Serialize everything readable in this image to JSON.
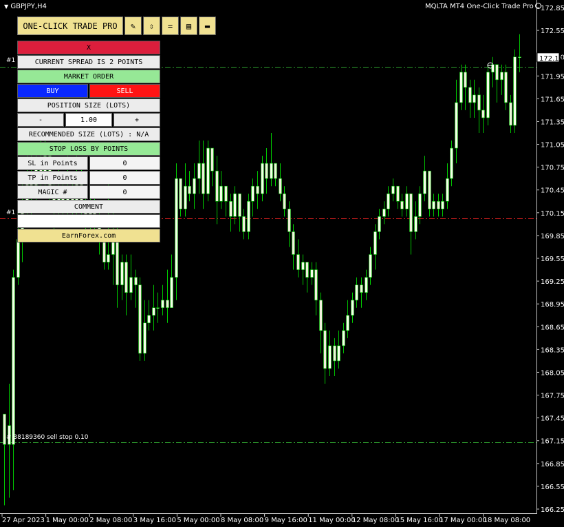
{
  "window": {
    "symbol_title": "GBPJPY,H4",
    "ea_title": "MQLTA MT4 One-Click Trade Pro"
  },
  "panel": {
    "title": "ONE-CLICK TRADE PRO",
    "tools": [
      {
        "name": "pencil-icon",
        "glyph": "✎"
      },
      {
        "name": "arrows-icon",
        "glyph": "⇳"
      },
      {
        "name": "equals-icon",
        "glyph": "="
      },
      {
        "name": "clipboard-icon",
        "glyph": "▤"
      },
      {
        "name": "save-icon",
        "glyph": "▬"
      }
    ],
    "close_label": "X",
    "spread_text": "CURRENT SPREAD IS 2 POINTS",
    "order_type": "MARKET ORDER",
    "buy_label": "BUY",
    "sell_label": "SELL",
    "position_size_label": "POSITION SIZE (LOTS)",
    "minus_label": "-",
    "lots_value": "1.00",
    "plus_label": "+",
    "recommended_text": "RECOMMENDED SIZE (LOTS) : N/A",
    "stop_loss_mode": "STOP LOSS BY POINTS",
    "sl_label": "SL in Points",
    "sl_value": "0",
    "tp_label": "TP in Points",
    "tp_value": "0",
    "magic_label": "MAGIC #",
    "magic_value": "0",
    "comment_label": "COMMENT",
    "comment_value": "",
    "footer_link": "EarnForex.com"
  },
  "chart_data": {
    "type": "candlestick",
    "symbol": "GBPJPY",
    "timeframe": "H4",
    "price_range": [
      166.15,
      172.9
    ],
    "price_ticks": [
      "172.85",
      "172.55",
      "172.20",
      "171.95",
      "171.65",
      "171.35",
      "171.05",
      "170.75",
      "170.45",
      "170.15",
      "169.85",
      "169.55",
      "169.25",
      "168.95",
      "168.65",
      "168.35",
      "168.05",
      "167.75",
      "167.45",
      "167.15",
      "166.85",
      "166.55",
      "166.25"
    ],
    "current_price_label": "172.19",
    "time_ticks": [
      "27 Apr 2023",
      "1 May 00:00",
      "2 May 08:00",
      "3 May 16:00",
      "5 May 00:00",
      "8 May 08:00",
      "9 May 16:00",
      "11 May 00:00",
      "12 May 08:00",
      "15 May 16:00",
      "17 May 00:00",
      "18 May 08:00"
    ],
    "level_lines": [
      {
        "price": 172.07,
        "color": "#2ea02e",
        "label": "#1"
      },
      {
        "price": 170.08,
        "color": "#e02020",
        "label": "#1"
      },
      {
        "price": 167.13,
        "color": "#2ea02e",
        "label": "# 38189360 sell stop 0.10"
      }
    ],
    "candles": [
      [
        167.5,
        167.1,
        167.5,
        166.3
      ],
      [
        167.1,
        167.35,
        167.9,
        166.4
      ],
      [
        167.1,
        169.3,
        169.4,
        166.5
      ],
      [
        169.3,
        169.8,
        170.2,
        169.2
      ],
      [
        169.8,
        170.3,
        170.6,
        169.5
      ],
      [
        170.3,
        170.6,
        170.9,
        170.0
      ],
      [
        170.6,
        170.4,
        170.9,
        170.1
      ],
      [
        170.4,
        170.8,
        171.0,
        170.2
      ],
      [
        170.8,
        170.6,
        171.1,
        170.4
      ],
      [
        170.6,
        170.9,
        171.2,
        170.4
      ],
      [
        170.9,
        170.5,
        171.0,
        170.2
      ],
      [
        170.5,
        170.2,
        170.7,
        169.9
      ],
      [
        170.2,
        170.5,
        170.8,
        170.0
      ],
      [
        170.5,
        170.2,
        170.7,
        170.0
      ],
      [
        170.2,
        170.5,
        170.9,
        170.0
      ],
      [
        170.5,
        170.3,
        170.7,
        170.1
      ],
      [
        170.3,
        170.6,
        170.9,
        170.1
      ],
      [
        170.6,
        170.3,
        170.8,
        170.0
      ],
      [
        170.3,
        170.0,
        170.5,
        169.8
      ],
      [
        170.0,
        170.3,
        170.5,
        169.8
      ],
      [
        170.3,
        170.1,
        170.4,
        169.9
      ],
      [
        170.1,
        169.8,
        170.2,
        169.6
      ],
      [
        169.8,
        169.5,
        169.9,
        169.4
      ],
      [
        169.5,
        169.6,
        170.6,
        169.4
      ],
      [
        169.6,
        169.9,
        170.2,
        169.2
      ],
      [
        169.9,
        169.2,
        170.0,
        168.9
      ],
      [
        169.2,
        169.5,
        169.6,
        169.0
      ],
      [
        169.5,
        169.1,
        169.6,
        168.8
      ],
      [
        169.1,
        169.3,
        169.6,
        169.0
      ],
      [
        169.3,
        169.2,
        169.4,
        168.9
      ],
      [
        169.2,
        168.3,
        169.3,
        168.2
      ],
      [
        168.3,
        168.7,
        169.0,
        168.2
      ],
      [
        168.7,
        168.8,
        169.0,
        168.6
      ],
      [
        168.8,
        168.9,
        169.2,
        168.6
      ],
      [
        168.9,
        168.9,
        169.1,
        168.7
      ],
      [
        168.9,
        169.0,
        169.2,
        168.8
      ],
      [
        169.0,
        168.9,
        169.4,
        168.7
      ],
      [
        168.9,
        169.3,
        169.6,
        169.0
      ],
      [
        169.3,
        170.6,
        170.8,
        169.0
      ],
      [
        170.6,
        170.2,
        170.6,
        170.1
      ],
      [
        170.2,
        170.5,
        170.8,
        170.1
      ],
      [
        170.5,
        170.4,
        170.7,
        170.3
      ],
      [
        170.4,
        170.6,
        170.8,
        170.2
      ],
      [
        170.6,
        170.8,
        171.1,
        170.4
      ],
      [
        170.8,
        170.4,
        171.1,
        170.2
      ],
      [
        170.4,
        171.0,
        171.1,
        170.3
      ],
      [
        171.0,
        170.7,
        171.0,
        170.5
      ],
      [
        170.7,
        170.3,
        170.9,
        170.0
      ],
      [
        170.3,
        170.5,
        170.7,
        170.2
      ],
      [
        170.5,
        170.3,
        170.5,
        170.1
      ],
      [
        170.3,
        170.1,
        170.4,
        169.9
      ],
      [
        170.1,
        170.4,
        170.5,
        170.0
      ],
      [
        170.4,
        170.1,
        170.4,
        169.9
      ],
      [
        170.1,
        169.9,
        170.2,
        169.8
      ],
      [
        169.9,
        170.3,
        170.4,
        169.8
      ],
      [
        170.3,
        170.5,
        170.6,
        170.1
      ],
      [
        170.5,
        170.4,
        170.7,
        170.2
      ],
      [
        170.4,
        170.8,
        170.9,
        170.3
      ],
      [
        170.8,
        170.6,
        171.0,
        170.4
      ],
      [
        170.6,
        170.8,
        171.2,
        170.5
      ],
      [
        170.8,
        170.6,
        170.8,
        170.5
      ],
      [
        170.6,
        170.4,
        170.8,
        170.3
      ],
      [
        170.4,
        170.2,
        170.5,
        170.1
      ],
      [
        170.2,
        169.9,
        170.3,
        169.7
      ],
      [
        169.9,
        169.6,
        170.0,
        169.4
      ],
      [
        169.6,
        169.4,
        169.8,
        169.3
      ],
      [
        169.4,
        169.5,
        169.6,
        169.2
      ],
      [
        169.5,
        169.3,
        169.5,
        169.1
      ],
      [
        169.3,
        169.4,
        169.5,
        169.2
      ],
      [
        169.4,
        169.0,
        169.5,
        168.8
      ],
      [
        169.0,
        168.6,
        169.1,
        168.3
      ],
      [
        168.6,
        168.1,
        168.7,
        167.9
      ],
      [
        168.1,
        168.4,
        168.6,
        168.0
      ],
      [
        168.4,
        168.2,
        168.5,
        168.0
      ],
      [
        168.2,
        168.4,
        168.6,
        168.1
      ],
      [
        168.4,
        168.6,
        168.7,
        168.3
      ],
      [
        168.6,
        168.8,
        169.0,
        168.5
      ],
      [
        168.8,
        169.0,
        169.1,
        168.7
      ],
      [
        169.0,
        169.2,
        169.3,
        168.9
      ],
      [
        169.2,
        169.1,
        169.3,
        168.9
      ],
      [
        169.1,
        169.3,
        169.4,
        169.0
      ],
      [
        169.3,
        169.6,
        169.7,
        169.2
      ],
      [
        169.6,
        169.9,
        170.0,
        169.4
      ],
      [
        169.9,
        170.1,
        170.2,
        169.8
      ],
      [
        170.1,
        170.2,
        170.3,
        170.0
      ],
      [
        170.2,
        170.4,
        170.5,
        170.1
      ],
      [
        170.4,
        170.5,
        170.6,
        170.3
      ],
      [
        170.5,
        170.3,
        170.5,
        170.2
      ],
      [
        170.3,
        170.2,
        170.4,
        170.1
      ],
      [
        170.2,
        170.4,
        170.5,
        170.1
      ],
      [
        170.4,
        169.9,
        170.4,
        169.6
      ],
      [
        169.9,
        170.1,
        170.3,
        169.8
      ],
      [
        170.1,
        170.4,
        170.5,
        170.0
      ],
      [
        170.4,
        170.7,
        170.9,
        170.3
      ],
      [
        170.7,
        170.2,
        170.7,
        170.1
      ],
      [
        170.2,
        170.3,
        170.4,
        170.1
      ],
      [
        170.3,
        170.2,
        170.4,
        170.1
      ],
      [
        170.2,
        170.3,
        170.4,
        170.1
      ],
      [
        170.3,
        170.6,
        170.8,
        170.2
      ],
      [
        170.6,
        171.0,
        171.1,
        170.5
      ],
      [
        171.0,
        171.6,
        171.9,
        170.8
      ],
      [
        171.6,
        172.0,
        172.1,
        171.5
      ],
      [
        172.0,
        171.8,
        172.1,
        171.5
      ],
      [
        171.8,
        171.6,
        171.9,
        171.4
      ],
      [
        171.6,
        171.7,
        171.9,
        171.4
      ],
      [
        171.7,
        171.5,
        171.8,
        171.2
      ],
      [
        171.5,
        171.4,
        171.7,
        171.2
      ],
      [
        171.4,
        172.0,
        172.1,
        171.3
      ],
      [
        172.0,
        172.1,
        172.2,
        171.8
      ],
      [
        172.1,
        171.9,
        172.1,
        171.6
      ],
      [
        171.9,
        172.0,
        172.1,
        171.7
      ],
      [
        172.0,
        171.6,
        172.1,
        171.5
      ],
      [
        171.6,
        171.3,
        171.7,
        171.2
      ],
      [
        171.3,
        172.2,
        172.3,
        171.2
      ],
      [
        172.2,
        172.2,
        172.5,
        172.0
      ]
    ]
  }
}
